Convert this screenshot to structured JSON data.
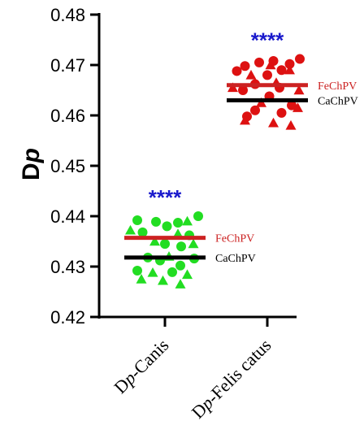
{
  "chart_data": {
    "type": "scatter",
    "ylabel_main": "D",
    "ylabel_italic": "p",
    "ylim": [
      0.42,
      0.48
    ],
    "yticks": [
      "0.42",
      "0.43",
      "0.44",
      "0.45",
      "0.46",
      "0.47",
      "0.48"
    ],
    "categories": [
      {
        "prefix": "D",
        "italic": "p",
        "suffix": "-Canis"
      },
      {
        "prefix": "D",
        "italic": "p",
        "suffix": "-Felis catus"
      }
    ],
    "groups": [
      {
        "color": "#22dd22",
        "significance": "****",
        "means": [
          {
            "label": "FeChPV",
            "value": 0.4357,
            "color": "#cc2222",
            "label_color": "#cc2222"
          },
          {
            "label": "CaChPV",
            "value": 0.4318,
            "color": "#000000",
            "label_color": "#000000"
          }
        ],
        "points": [
          {
            "shape": "circle",
            "value": 0.44,
            "offset": 0.82
          },
          {
            "shape": "circle",
            "value": 0.4392,
            "offset": -0.68
          },
          {
            "shape": "circle",
            "value": 0.4389,
            "offset": -0.22
          },
          {
            "shape": "circle",
            "value": 0.4387,
            "offset": 0.32
          },
          {
            "shape": "circle",
            "value": 0.438,
            "offset": 0.05
          },
          {
            "shape": "circle",
            "value": 0.4368,
            "offset": -0.55
          },
          {
            "shape": "circle",
            "value": 0.4362,
            "offset": 0.6
          },
          {
            "shape": "circle",
            "value": 0.4345,
            "offset": 0.0
          },
          {
            "shape": "circle",
            "value": 0.434,
            "offset": 0.4
          },
          {
            "shape": "circle",
            "value": 0.4318,
            "offset": -0.42
          },
          {
            "shape": "circle",
            "value": 0.4316,
            "offset": 0.72
          },
          {
            "shape": "circle",
            "value": 0.4312,
            "offset": -0.12
          },
          {
            "shape": "circle",
            "value": 0.4302,
            "offset": 0.38
          },
          {
            "shape": "circle",
            "value": 0.4292,
            "offset": -0.68
          },
          {
            "shape": "circle",
            "value": 0.4289,
            "offset": 0.18
          },
          {
            "shape": "triangle",
            "value": 0.439,
            "offset": 0.55
          },
          {
            "shape": "triangle",
            "value": 0.4372,
            "offset": -0.85
          },
          {
            "shape": "triangle",
            "value": 0.4365,
            "offset": 0.32
          },
          {
            "shape": "triangle",
            "value": 0.435,
            "offset": -0.25
          },
          {
            "shape": "triangle",
            "value": 0.4345,
            "offset": 0.7
          },
          {
            "shape": "triangle",
            "value": 0.432,
            "offset": 0.1
          },
          {
            "shape": "triangle",
            "value": 0.4288,
            "offset": -0.3
          },
          {
            "shape": "triangle",
            "value": 0.4284,
            "offset": 0.55
          },
          {
            "shape": "triangle",
            "value": 0.4275,
            "offset": -0.58
          },
          {
            "shape": "triangle",
            "value": 0.4272,
            "offset": -0.05
          },
          {
            "shape": "triangle",
            "value": 0.4265,
            "offset": 0.38
          }
        ]
      },
      {
        "color": "#dd1111",
        "significance": "****",
        "means": [
          {
            "label": "FeChPV",
            "value": 0.466,
            "color": "#cc2222",
            "label_color": "#cc2222"
          },
          {
            "label": "CaChPV",
            "value": 0.463,
            "color": "#000000",
            "label_color": "#000000"
          }
        ],
        "points": [
          {
            "shape": "circle",
            "value": 0.4712,
            "offset": 0.8
          },
          {
            "shape": "circle",
            "value": 0.4708,
            "offset": 0.15
          },
          {
            "shape": "circle",
            "value": 0.4705,
            "offset": -0.2
          },
          {
            "shape": "circle",
            "value": 0.4702,
            "offset": 0.55
          },
          {
            "shape": "circle",
            "value": 0.4698,
            "offset": -0.55
          },
          {
            "shape": "circle",
            "value": 0.469,
            "offset": 0.35
          },
          {
            "shape": "circle",
            "value": 0.4688,
            "offset": -0.75
          },
          {
            "shape": "circle",
            "value": 0.468,
            "offset": 0.0
          },
          {
            "shape": "circle",
            "value": 0.4662,
            "offset": -0.3
          },
          {
            "shape": "circle",
            "value": 0.4655,
            "offset": 0.3
          },
          {
            "shape": "circle",
            "value": 0.465,
            "offset": -0.6
          },
          {
            "shape": "circle",
            "value": 0.4638,
            "offset": 0.05
          },
          {
            "shape": "circle",
            "value": 0.462,
            "offset": 0.6
          },
          {
            "shape": "circle",
            "value": 0.461,
            "offset": -0.3
          },
          {
            "shape": "circle",
            "value": 0.4605,
            "offset": 0.35
          },
          {
            "shape": "circle",
            "value": 0.4598,
            "offset": -0.5
          },
          {
            "shape": "triangle",
            "value": 0.47,
            "offset": 0.08
          },
          {
            "shape": "triangle",
            "value": 0.469,
            "offset": 0.55
          },
          {
            "shape": "triangle",
            "value": 0.468,
            "offset": -0.4
          },
          {
            "shape": "triangle",
            "value": 0.4665,
            "offset": 0.22
          },
          {
            "shape": "triangle",
            "value": 0.4655,
            "offset": -0.85
          },
          {
            "shape": "triangle",
            "value": 0.465,
            "offset": 0.78
          },
          {
            "shape": "triangle",
            "value": 0.4625,
            "offset": -0.15
          },
          {
            "shape": "triangle",
            "value": 0.4615,
            "offset": 0.75
          },
          {
            "shape": "triangle",
            "value": 0.459,
            "offset": -0.55
          },
          {
            "shape": "triangle",
            "value": 0.4585,
            "offset": 0.15
          },
          {
            "shape": "triangle",
            "value": 0.458,
            "offset": 0.58
          }
        ]
      }
    ]
  }
}
